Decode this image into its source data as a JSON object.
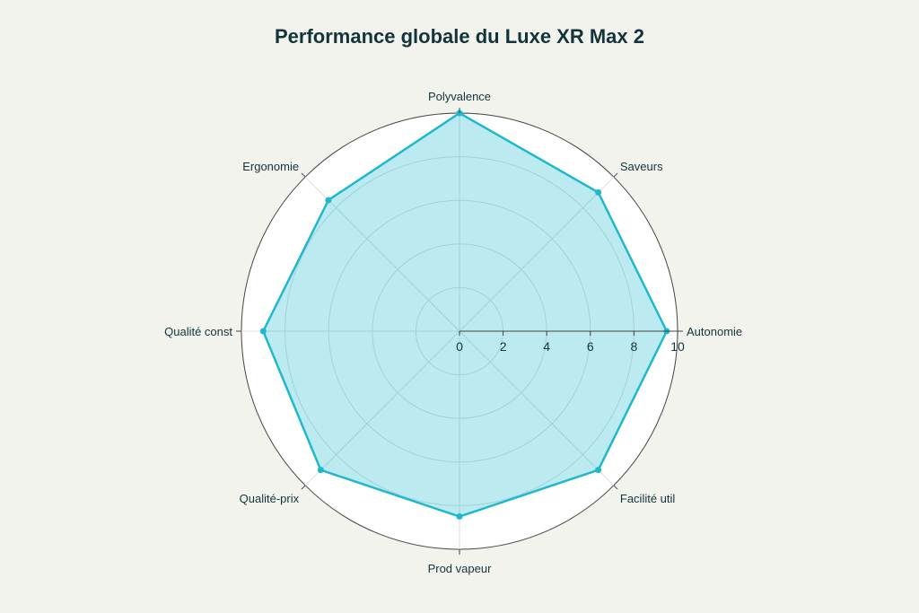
{
  "chart_data": {
    "type": "radar",
    "title": "Performance globale du Luxe XR Max 2",
    "categories": [
      "Autonomie",
      "Saveurs",
      "Polyvalence",
      "Ergonomie",
      "Qualité const",
      "Qualité-prix",
      "Prod vapeur",
      "Facilité util"
    ],
    "values": [
      9.5,
      9,
      10,
      8.5,
      9,
      9,
      8.5,
      9
    ],
    "radial_range": [
      0,
      10
    ],
    "radial_ticks": [
      "0",
      "2",
      "4",
      "6",
      "8",
      "10"
    ],
    "grid": true,
    "legend": "none",
    "colors": {
      "line": "#1fb8cd",
      "fill": "rgba(31,184,205,0.3)",
      "title": "#13343b",
      "background": "#f3f3ee"
    }
  }
}
